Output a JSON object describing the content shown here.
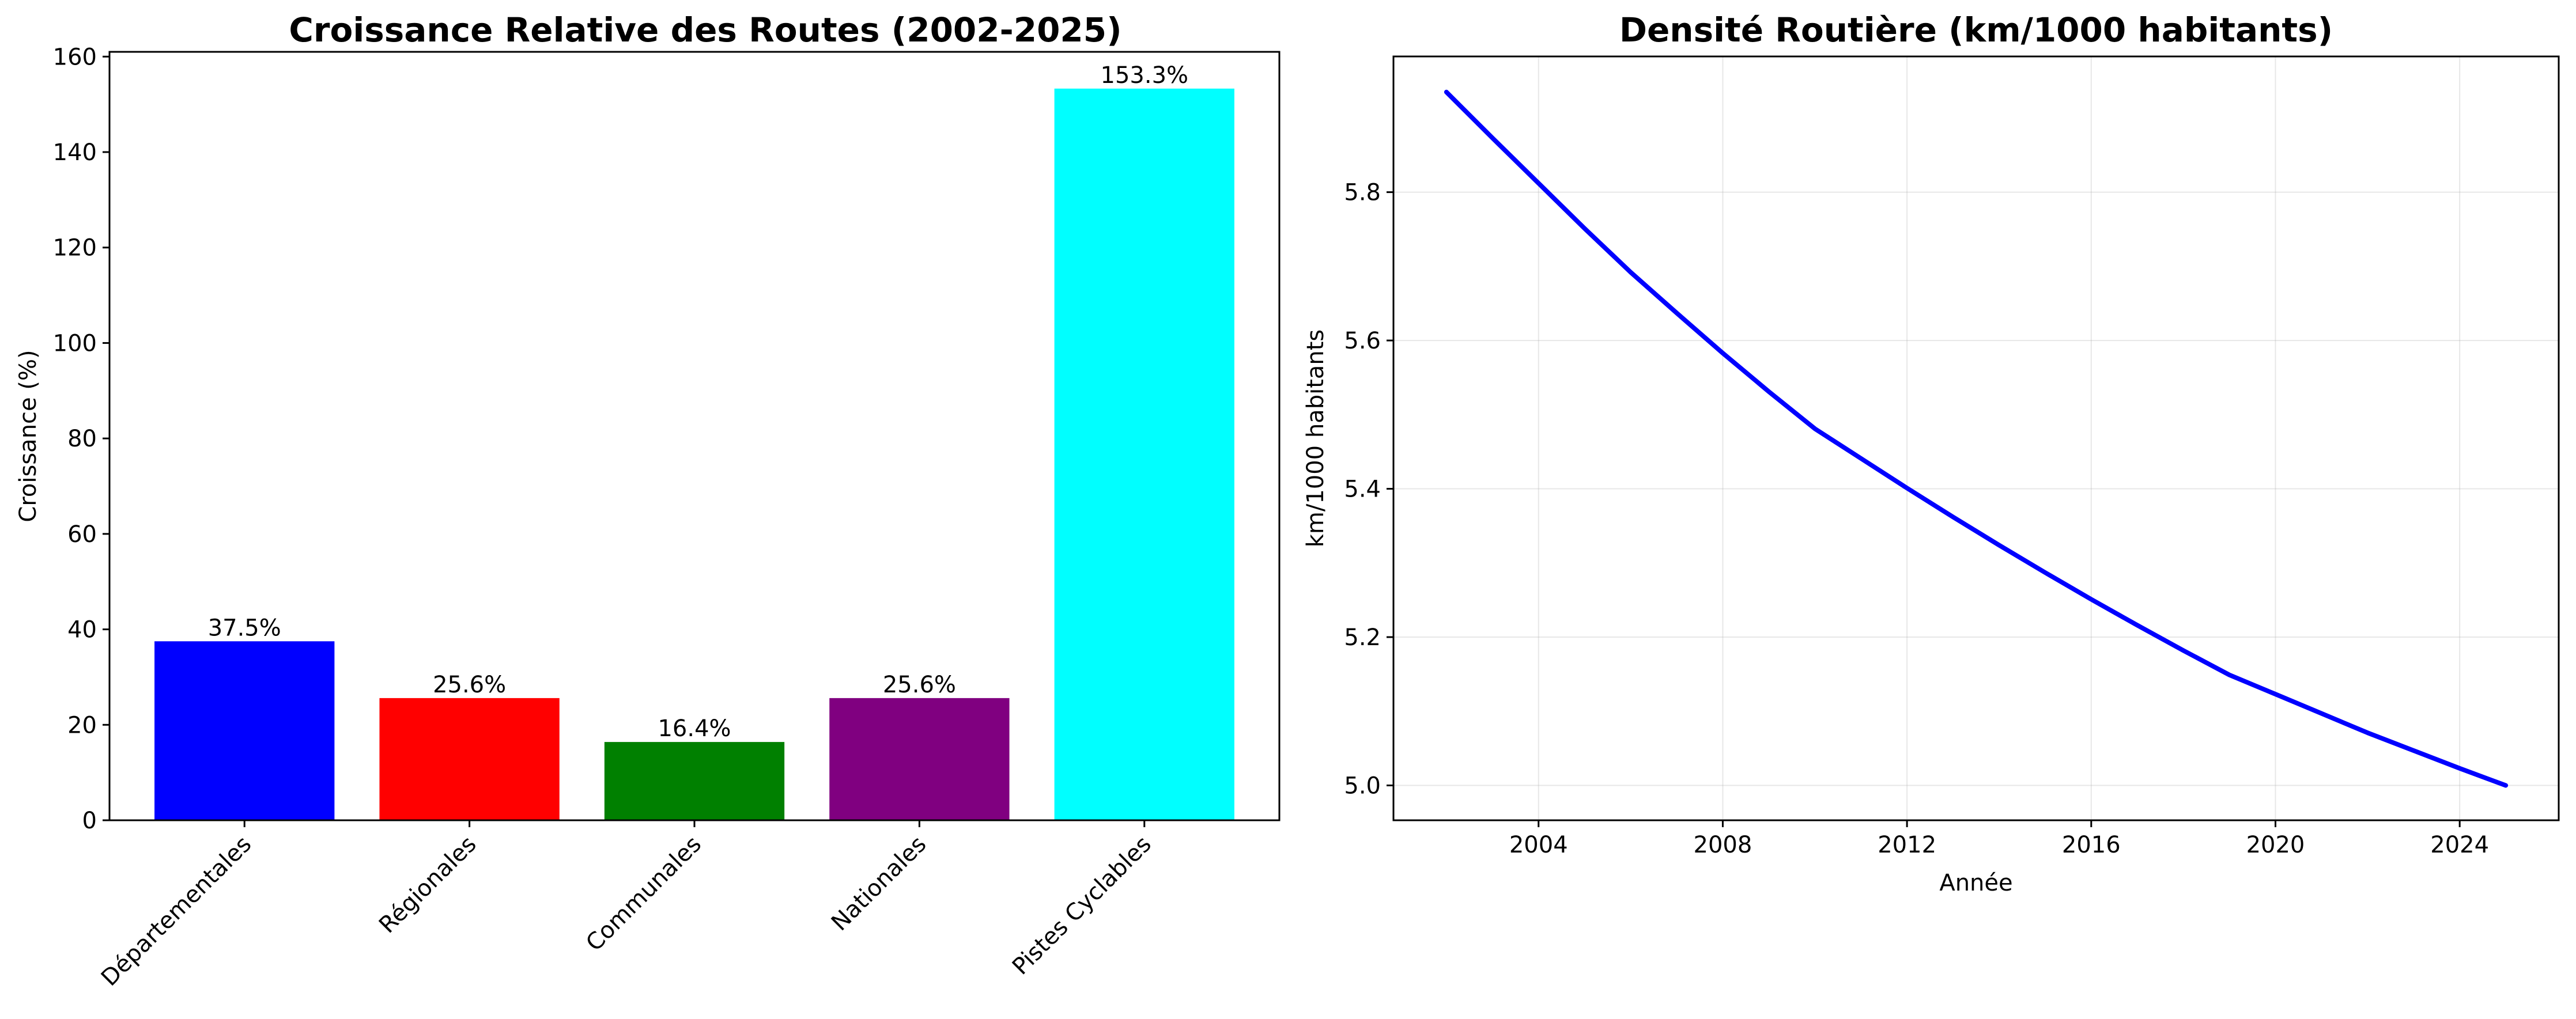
{
  "chart_data": [
    {
      "type": "bar",
      "title": "Croissance Relative des Routes (2002-2025)",
      "xlabel": "",
      "ylabel": "Croissance (%)",
      "ylim": [
        0,
        161
      ],
      "yticks": [
        "0",
        "20",
        "40",
        "60",
        "80",
        "100",
        "120",
        "140",
        "160"
      ],
      "ytick_values": [
        0,
        20,
        40,
        60,
        80,
        100,
        120,
        140,
        160
      ],
      "categories": [
        "Départementales",
        "Régionales",
        "Communales",
        "Nationales",
        "Pistes Cyclables"
      ],
      "values": [
        37.5,
        25.6,
        16.4,
        25.6,
        153.3
      ],
      "value_labels": [
        "37.5%",
        "25.6%",
        "16.4%",
        "25.6%",
        "153.3%"
      ],
      "colors": [
        "#0000ff",
        "#ff0000",
        "#008000",
        "#800080",
        "#00ffff"
      ],
      "grid": false
    },
    {
      "type": "line",
      "title": "Densité Routière (km/1000 habitants)",
      "xlabel": "Année",
      "ylabel": "km/1000 habitants",
      "xlim": [
        2000.85,
        2026.15
      ],
      "ylim": [
        4.953,
        5.983
      ],
      "xticks": [
        "2004",
        "2008",
        "2012",
        "2016",
        "2020",
        "2024"
      ],
      "xtick_values": [
        2004,
        2008,
        2012,
        2016,
        2020,
        2024
      ],
      "yticks": [
        "5.0",
        "5.2",
        "5.4",
        "5.6",
        "5.8"
      ],
      "ytick_values": [
        5.0,
        5.2,
        5.4,
        5.6,
        5.8
      ],
      "grid": true,
      "series": [
        {
          "color": "#0000ff",
          "x": [
            2002,
            2003,
            2004,
            2005,
            2006,
            2007,
            2008,
            2009,
            2010,
            2011,
            2012,
            2013,
            2014,
            2015,
            2016,
            2017,
            2018,
            2019,
            2020,
            2021,
            2022,
            2023,
            2024,
            2025
          ],
          "y": [
            5.935,
            5.873,
            5.812,
            5.751,
            5.692,
            5.637,
            5.583,
            5.531,
            5.481,
            5.441,
            5.401,
            5.362,
            5.324,
            5.287,
            5.251,
            5.216,
            5.182,
            5.149,
            5.123,
            5.097,
            5.071,
            5.047,
            5.023,
            5.0
          ]
        }
      ]
    }
  ]
}
